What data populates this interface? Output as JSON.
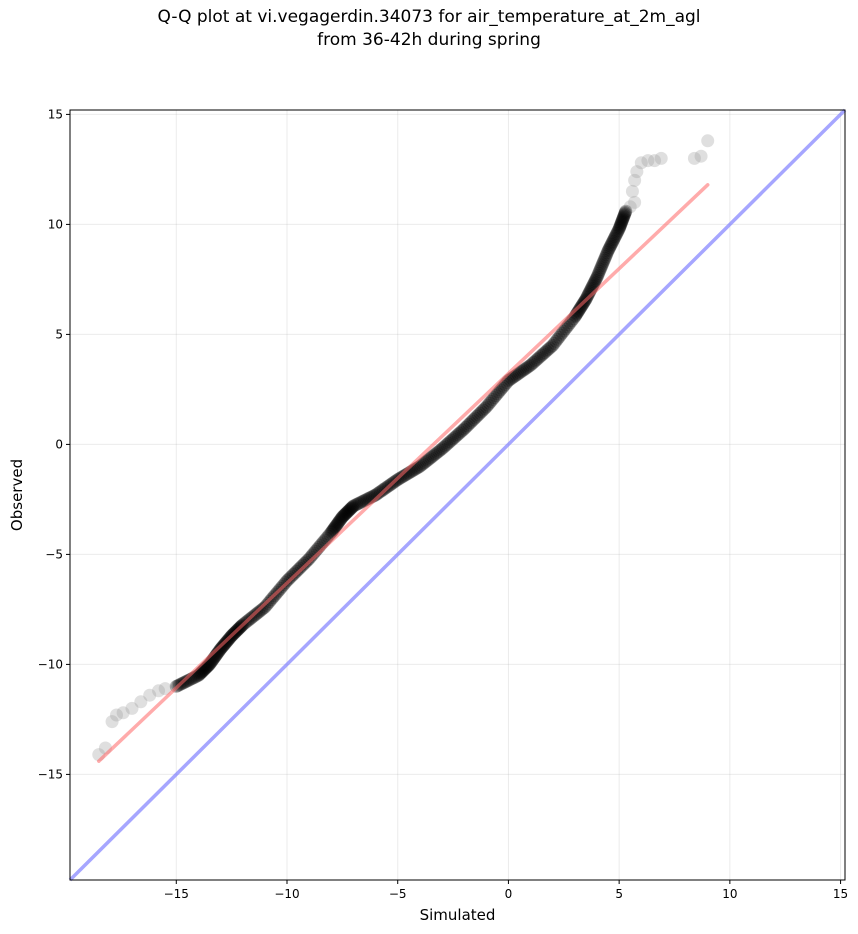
{
  "chart_data": {
    "type": "scatter",
    "title": [
      "Q-Q plot at vi.vegagerdin.34073 for air_temperature_at_2m_agl",
      "from 36-42h during spring"
    ],
    "xlabel": "Simulated",
    "ylabel": "Observed",
    "xlim": [
      -19.8,
      15.2
    ],
    "ylim": [
      -19.8,
      15.2
    ],
    "xticks": [
      -15,
      -10,
      -5,
      0,
      5,
      10,
      15
    ],
    "yticks": [
      -15,
      -10,
      -5,
      0,
      5,
      10,
      15
    ],
    "grid": true,
    "identity_line": {
      "color": "#8080ff",
      "from": [
        -19.8,
        -19.8
      ],
      "to": [
        15.2,
        15.2
      ]
    },
    "fit_line": {
      "color": "#ff6666",
      "from": [
        -18.5,
        -14.4
      ],
      "to": [
        9.0,
        11.8
      ]
    },
    "point_color": "#000000",
    "dense_trend": [
      [
        -15.0,
        -11.0
      ],
      [
        -14.0,
        -10.5
      ],
      [
        -13.5,
        -10.0
      ],
      [
        -13.0,
        -9.3
      ],
      [
        -12.5,
        -8.7
      ],
      [
        -12.0,
        -8.2
      ],
      [
        -11.0,
        -7.4
      ],
      [
        -10.0,
        -6.2
      ],
      [
        -9.0,
        -5.2
      ],
      [
        -8.0,
        -4.0
      ],
      [
        -7.5,
        -3.3
      ],
      [
        -7.0,
        -2.8
      ],
      [
        -6.0,
        -2.3
      ],
      [
        -5.0,
        -1.6
      ],
      [
        -4.0,
        -1.0
      ],
      [
        -3.0,
        -0.2
      ],
      [
        -2.0,
        0.7
      ],
      [
        -1.0,
        1.7
      ],
      [
        0.0,
        2.9
      ],
      [
        1.0,
        3.6
      ],
      [
        2.0,
        4.5
      ],
      [
        3.0,
        5.8
      ],
      [
        3.5,
        6.6
      ],
      [
        4.0,
        7.6
      ],
      [
        4.5,
        8.8
      ],
      [
        5.0,
        9.8
      ],
      [
        5.3,
        10.6
      ]
    ],
    "tail_points": [
      [
        -18.5,
        -14.1
      ],
      [
        -18.2,
        -13.8
      ],
      [
        -17.9,
        -12.6
      ],
      [
        -17.7,
        -12.3
      ],
      [
        -17.4,
        -12.2
      ],
      [
        -17.0,
        -12.0
      ],
      [
        -16.6,
        -11.7
      ],
      [
        -16.2,
        -11.4
      ],
      [
        -15.8,
        -11.2
      ],
      [
        -15.5,
        -11.1
      ],
      [
        5.5,
        10.8
      ],
      [
        5.7,
        11.0
      ],
      [
        5.6,
        11.5
      ],
      [
        5.7,
        12.0
      ],
      [
        5.8,
        12.4
      ],
      [
        6.0,
        12.8
      ],
      [
        6.3,
        12.9
      ],
      [
        6.6,
        12.9
      ],
      [
        6.9,
        13.0
      ],
      [
        8.4,
        13.0
      ],
      [
        8.7,
        13.1
      ],
      [
        9.0,
        13.8
      ]
    ]
  }
}
